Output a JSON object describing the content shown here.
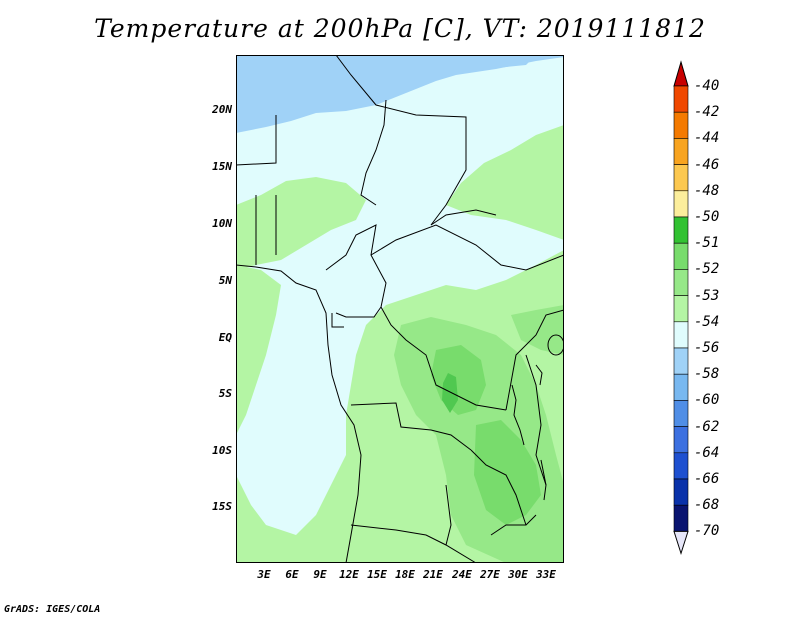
{
  "title": "Temperature at 200hPa [C], VT: 2019111812",
  "credit": "GrADS: IGES/COLA",
  "map": {
    "region": "Central / Southern Africa",
    "lat_labels": [
      "20N",
      "15N",
      "10N",
      "5N",
      "EQ",
      "5S",
      "10S",
      "15S"
    ],
    "lon_labels": [
      "3E",
      "6E",
      "9E",
      "12E",
      "15E",
      "18E",
      "21E",
      "24E",
      "27E",
      "30E",
      "33E"
    ],
    "colors": {
      "ocean_cold": "#a0d2f7",
      "pale": "#e0fcfd",
      "light_green": "#b4f5a4",
      "mid_green": "#96e888",
      "dark_green": "#78dc6c",
      "deep_green": "#50c850",
      "border": "#000000"
    }
  },
  "legend": {
    "labels": [
      "-40",
      "-42",
      "-44",
      "-46",
      "-48",
      "-50",
      "-51",
      "-52",
      "-53",
      "-54",
      "-56",
      "-58",
      "-60",
      "-62",
      "-64",
      "-66",
      "-68",
      "-70"
    ],
    "colors": [
      "#e01400",
      "#f04800",
      "#f47a00",
      "#f8a420",
      "#fcc850",
      "#fcee9c",
      "#32c232",
      "#78dc6c",
      "#96e888",
      "#b4f5a4",
      "#e0fcfd",
      "#a0d2f7",
      "#78b8f0",
      "#508ee6",
      "#3c70e0",
      "#1e50d0",
      "#0a32aa",
      "#0a1470"
    ],
    "arrow_top_color": "#c80000",
    "arrow_bottom_color": "#e6e6f8"
  }
}
